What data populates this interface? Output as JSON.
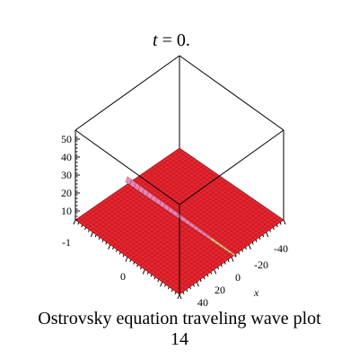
{
  "chart_data": {
    "type": "surface3d",
    "title_var": "t",
    "title_rest": " = 0.",
    "x_axis_label": "x",
    "x_ticks": [
      "-40",
      "-20",
      "0",
      "20",
      "40"
    ],
    "y_ticks": [
      "-1",
      "0"
    ],
    "z_ticks": [
      "10",
      "20",
      "30",
      "40",
      "50"
    ],
    "x_range": [
      -40,
      40
    ],
    "y_range": [
      -1,
      1
    ],
    "z_range": [
      0,
      55
    ],
    "surface_color": "#e8252f",
    "surface_mesh_color": "#9e1119",
    "wave_highlight_color": "#e98ab4",
    "wave_tail_color": "#e8c878",
    "box_color": "#000000"
  },
  "caption": {
    "line1": "Ostrovsky equation  traveling wave plot",
    "line2": "14"
  }
}
